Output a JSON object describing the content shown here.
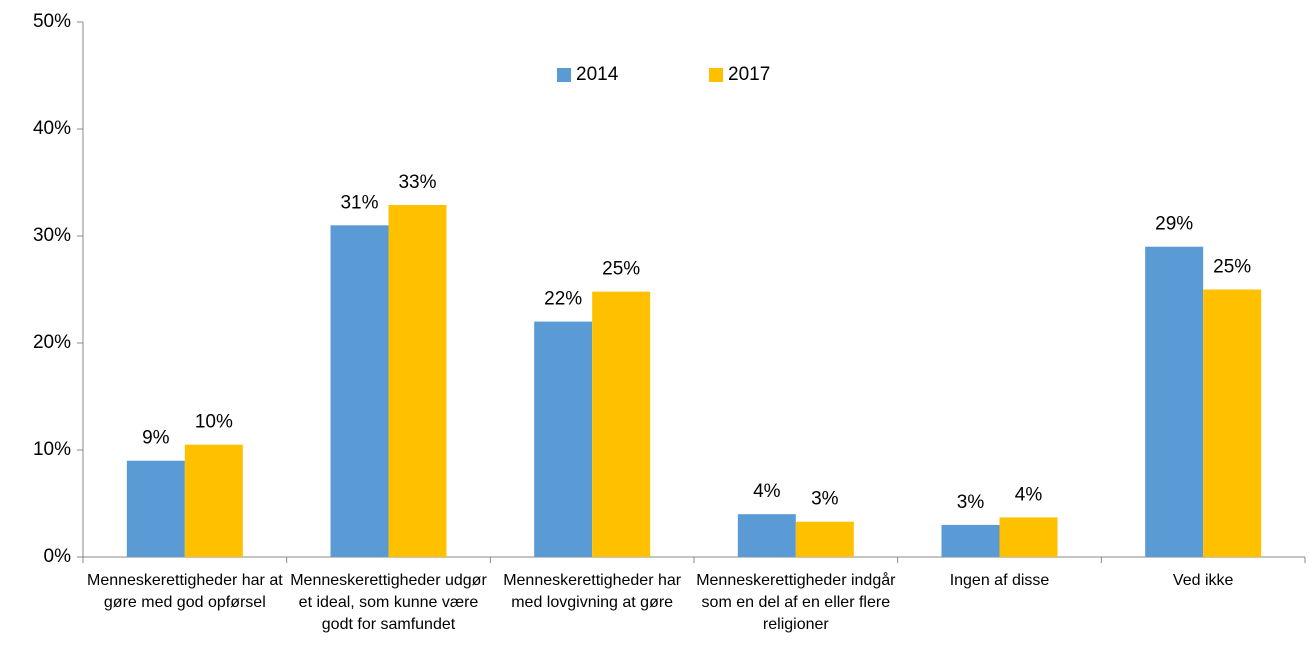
{
  "chart_data": {
    "type": "bar",
    "categories": [
      "Menneskerettigheder har at gøre med god opførsel",
      "Menneskerettigheder udgør et ideal, som kunne være godt for samfundet",
      "Menneskerettigheder har med lovgivning at gøre",
      "Menneskerettigheder indgår som en del af en eller flere religioner",
      "Ingen af disse",
      "Ved ikke"
    ],
    "series": [
      {
        "name": "2014",
        "color": "#5b9bd5",
        "values": [
          9,
          31,
          22,
          4,
          3,
          29
        ],
        "value_labels": [
          "9%",
          "31%",
          "22%",
          "4%",
          "3%",
          "29%"
        ]
      },
      {
        "name": "2017",
        "color": "#ffc000",
        "values": [
          10.5,
          32.9,
          24.8,
          3.3,
          3.7,
          25
        ],
        "value_labels": [
          "10%",
          "33%",
          "25%",
          "3%",
          "4%",
          "25%"
        ]
      }
    ],
    "ylim": [
      0,
      50
    ],
    "yticks": [
      {
        "value": 0,
        "label": "0%"
      },
      {
        "value": 10,
        "label": "10%"
      },
      {
        "value": 20,
        "label": "20%"
      },
      {
        "value": 30,
        "label": "30%"
      },
      {
        "value": 40,
        "label": "40%"
      },
      {
        "value": 50,
        "label": "50%"
      }
    ],
    "grid": false,
    "legend": "top"
  }
}
